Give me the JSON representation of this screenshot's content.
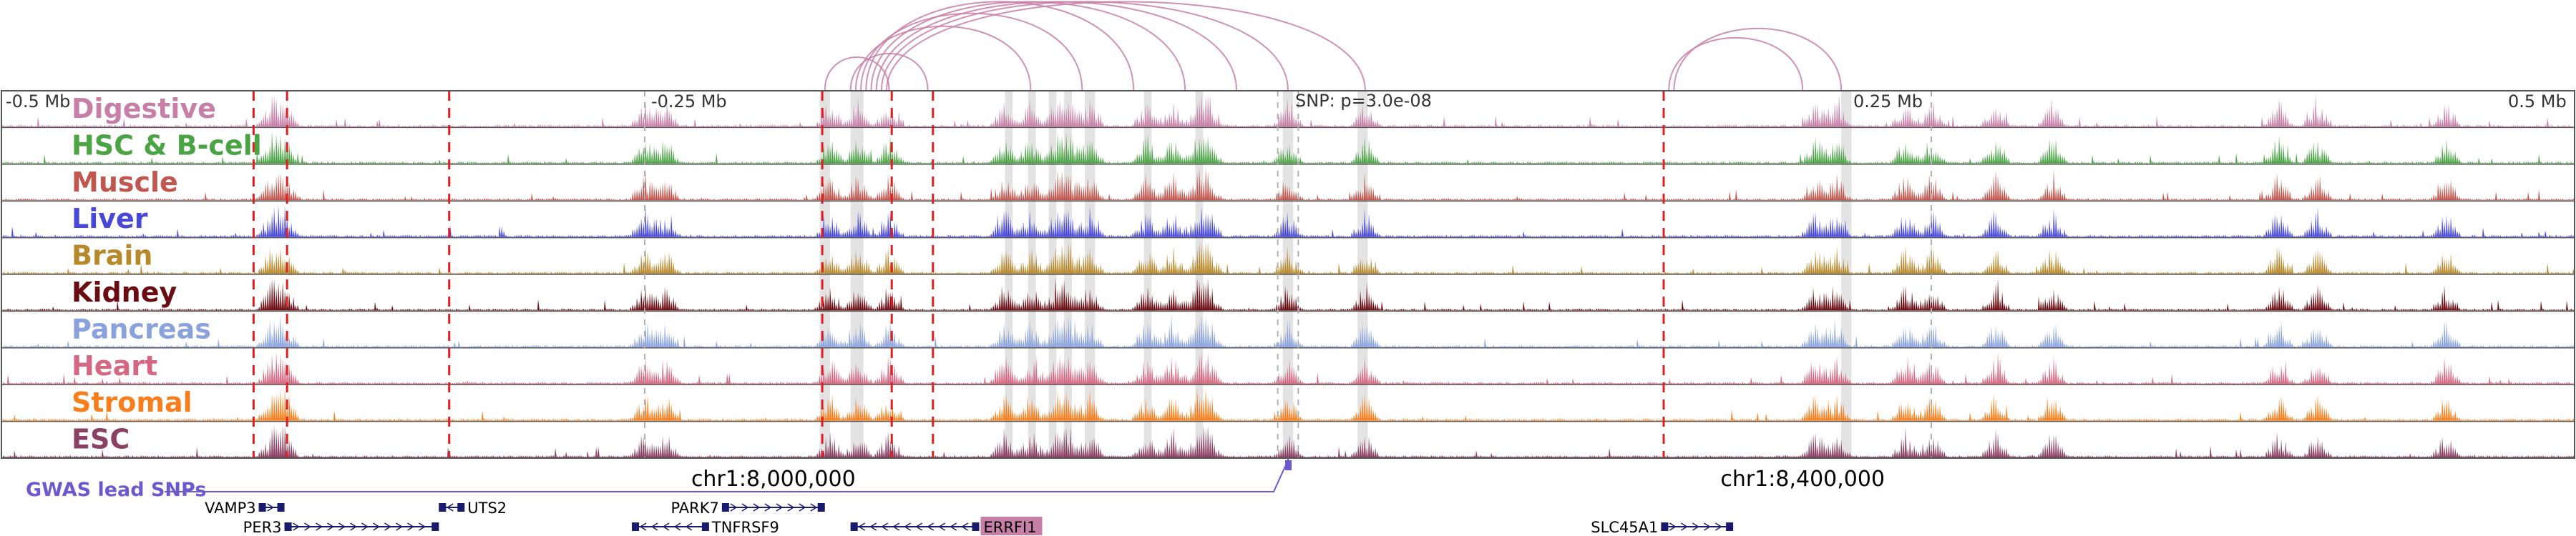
{
  "axis": {
    "ticks": [
      {
        "label": "-0.5 Mb",
        "value": -0.5
      },
      {
        "label": "-0.25 Mb",
        "value": -0.25
      },
      {
        "label": "0.25 Mb",
        "value": 0.25
      },
      {
        "label": "0.5 Mb",
        "value": 0.5
      }
    ],
    "range": [
      -0.5,
      0.5
    ]
  },
  "snp_label": "SNP: p=3.0e-08",
  "tracks": [
    {
      "name": "Digestive",
      "color": "#c77fa8"
    },
    {
      "name": "HSC & B-cell",
      "color": "#4aa444"
    },
    {
      "name": "Muscle",
      "color": "#c0564e"
    },
    {
      "name": "Liver",
      "color": "#4747d8"
    },
    {
      "name": "Brain",
      "color": "#b8892a"
    },
    {
      "name": "Kidney",
      "color": "#6a0c12"
    },
    {
      "name": "Pancreas",
      "color": "#8aa2dc"
    },
    {
      "name": "Heart",
      "color": "#d56782"
    },
    {
      "name": "Stromal",
      "color": "#f77e1a"
    },
    {
      "name": "ESC",
      "color": "#8a4062"
    }
  ],
  "coordinates": [
    {
      "label": "chr1:8,000,000",
      "pos": -0.2
    },
    {
      "label": "chr1:8,400,000",
      "pos": 0.2
    }
  ],
  "gwas": {
    "label": "GWAS lead SNPs",
    "color": "#6a5acd"
  },
  "genes": [
    {
      "name": "VAMP3",
      "strand": "+",
      "start": -0.4,
      "end": -0.39,
      "label_side": "left",
      "row": 0,
      "highlight": false
    },
    {
      "name": "UTS2",
      "strand": "-",
      "start": -0.33,
      "end": -0.32,
      "label_side": "right",
      "row": 0,
      "highlight": false
    },
    {
      "name": "PARK7",
      "strand": "+",
      "start": -0.22,
      "end": -0.18,
      "label_side": "left",
      "row": 0,
      "highlight": false
    },
    {
      "name": "PER3",
      "strand": "+",
      "start": -0.39,
      "end": -0.33,
      "label_side": "left",
      "row": 1,
      "highlight": false
    },
    {
      "name": "TNFRSF9",
      "strand": "-",
      "start": -0.255,
      "end": -0.225,
      "label_side": "right",
      "row": 1,
      "highlight": false
    },
    {
      "name": "ERRFI1",
      "strand": "-",
      "start": -0.17,
      "end": -0.12,
      "label_side": "right",
      "row": 1,
      "highlight": true
    },
    {
      "name": "SLC45A1",
      "strand": "+",
      "start": 0.145,
      "end": 0.173,
      "label_side": "left",
      "row": 1,
      "highlight": false
    }
  ],
  "snp_position": 0.0,
  "highlight_regions": [
    [
      -0.182,
      -0.178
    ],
    [
      -0.17,
      -0.165
    ],
    [
      -0.11,
      -0.107
    ],
    [
      -0.101,
      -0.098
    ],
    [
      -0.093,
      -0.09
    ],
    [
      -0.087,
      -0.084
    ],
    [
      -0.079,
      -0.075
    ],
    [
      -0.056,
      -0.053
    ],
    [
      -0.036,
      -0.033
    ],
    [
      -0.002,
      0.002
    ],
    [
      0.027,
      0.031
    ],
    [
      0.215,
      0.219
    ]
  ],
  "red_lines": [
    -0.402,
    -0.389,
    -0.326,
    -0.181,
    -0.154,
    -0.138,
    0.146
  ],
  "grey_lines": [
    -0.25,
    -0.004,
    0.004,
    0.25
  ],
  "arcs": [
    {
      "from": -0.17,
      "to": -0.14,
      "color": "#c77fa8"
    },
    {
      "from": -0.168,
      "to": -0.1,
      "color": "#c77fa8"
    },
    {
      "from": -0.166,
      "to": -0.08,
      "color": "#c77fa8"
    },
    {
      "from": -0.164,
      "to": -0.06,
      "color": "#c77fa8"
    },
    {
      "from": -0.162,
      "to": -0.04,
      "color": "#c77fa8"
    },
    {
      "from": -0.16,
      "to": -0.02,
      "color": "#c77fa8"
    },
    {
      "from": -0.158,
      "to": 0.0,
      "color": "#c77fa8"
    },
    {
      "from": -0.156,
      "to": 0.03,
      "color": "#c77fa8"
    },
    {
      "from": -0.18,
      "to": -0.155,
      "color": "#c77fa8"
    },
    {
      "from": 0.148,
      "to": 0.2,
      "color": "#c77fa8"
    },
    {
      "from": 0.15,
      "to": 0.215,
      "color": "#c77fa8"
    }
  ]
}
